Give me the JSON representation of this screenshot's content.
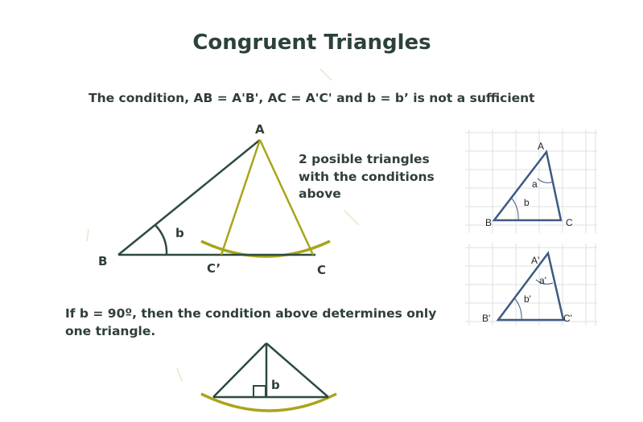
{
  "title": "Congruent Triangles",
  "condition_text": "The condition, AB = A'B', AC = A'C' and b = b’ is not a sufficient",
  "note_text": "2 posible triangles with the conditions above",
  "if_text": "If b = 90º, then the condition above determines only one triangle.",
  "main_diagram": {
    "labels": {
      "A": "A",
      "B": "B",
      "C": "C",
      "C_prime": "C’",
      "angle_b": "b"
    }
  },
  "bottom_diagram": {
    "labels": {
      "angle_b": "b"
    }
  },
  "grid_triangle_1": {
    "labels": {
      "A": "A",
      "B": "B",
      "C": "C",
      "a": "a",
      "b": "b"
    }
  },
  "grid_triangle_2": {
    "labels": {
      "A": "A'",
      "B": "B'",
      "C": "C'",
      "a": "a'",
      "b": "b'"
    }
  },
  "colors": {
    "title": "#2c4238",
    "line_dark": "#2d4a3e",
    "line_olive": "#a8a51a",
    "arc_olive": "#a8a51a",
    "triangle_blue": "#3c5a82",
    "grid": "#d8dde3"
  }
}
